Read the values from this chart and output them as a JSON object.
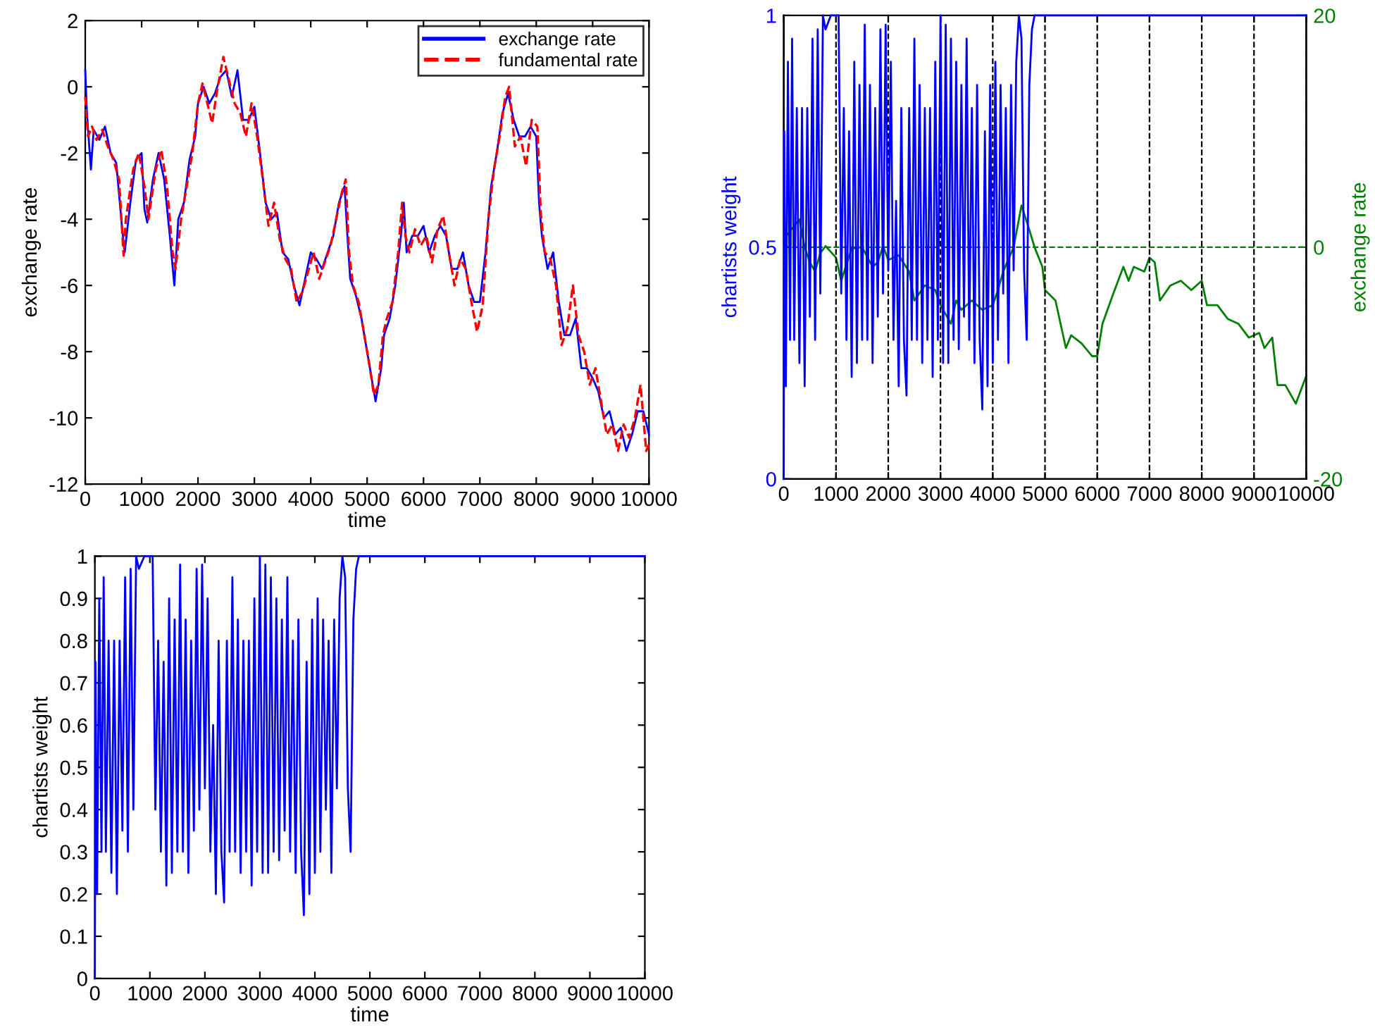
{
  "chart_data": [
    {
      "type": "line",
      "xlabel": "time",
      "ylabel": "exchange rate",
      "xlim": [
        0,
        10000
      ],
      "ylim": [
        -12,
        2
      ],
      "xticks": [
        0,
        1000,
        2000,
        3000,
        4000,
        5000,
        6000,
        7000,
        8000,
        9000,
        10000
      ],
      "yticks": [
        -12,
        -10,
        -8,
        -6,
        -4,
        -2,
        0,
        2
      ],
      "grid": false,
      "legend": "top right",
      "series": [
        {
          "name": "exchange rate",
          "color": "#0000ff",
          "line_style": "solid",
          "x": [
            0,
            30,
            100,
            150,
            250,
            350,
            450,
            550,
            650,
            700,
            800,
            900,
            1000,
            1050,
            1100,
            1200,
            1300,
            1400,
            1500,
            1580,
            1650,
            1750,
            1850,
            1950,
            2000,
            2100,
            2200,
            2300,
            2400,
            2500,
            2600,
            2700,
            2800,
            2900,
            3000,
            3100,
            3200,
            3300,
            3400,
            3500,
            3600,
            3700,
            3800,
            3900,
            4000,
            4100,
            4200,
            4300,
            4400,
            4500,
            4600,
            4650,
            4700,
            4800,
            4900,
            5000,
            5100,
            5150,
            5250,
            5300,
            5400,
            5500,
            5600,
            5650,
            5700,
            5800,
            5900,
            6000,
            6100,
            6200,
            6300,
            6400,
            6500,
            6600,
            6700,
            6800,
            6900,
            7000,
            7100,
            7200,
            7300,
            7400,
            7500,
            7600,
            7700,
            7800,
            7900,
            8000,
            8050,
            8100,
            8200,
            8300,
            8400,
            8500,
            8600,
            8700,
            8800,
            8900,
            9000,
            9100,
            9200,
            9300,
            9400,
            9500,
            9600,
            9700,
            9800,
            9900,
            10000
          ],
          "values": [
            0.5,
            -0.8,
            -2.5,
            -1.3,
            -1.6,
            -1.2,
            -2.0,
            -2.3,
            -4.2,
            -5.0,
            -3.5,
            -2.2,
            -2.0,
            -3.7,
            -4.1,
            -2.8,
            -2.0,
            -2.8,
            -4.5,
            -6.0,
            -4.0,
            -3.5,
            -2.2,
            -1.5,
            -0.5,
            0.0,
            -0.5,
            -0.2,
            0.3,
            0.5,
            -0.3,
            0.5,
            -1.0,
            -1.0,
            -0.6,
            -2.0,
            -3.5,
            -4.0,
            -3.8,
            -5.0,
            -5.2,
            -6.0,
            -6.6,
            -5.8,
            -5.0,
            -5.2,
            -5.5,
            -5.0,
            -4.5,
            -3.5,
            -3.0,
            -4.5,
            -5.8,
            -6.3,
            -7.0,
            -8.0,
            -9.0,
            -9.5,
            -8.5,
            -7.5,
            -7.0,
            -6.0,
            -4.5,
            -3.5,
            -5.0,
            -4.5,
            -4.5,
            -4.2,
            -5.0,
            -4.5,
            -4.2,
            -4.5,
            -5.5,
            -5.5,
            -5.0,
            -6.0,
            -6.5,
            -6.5,
            -5.0,
            -3.0,
            -2.0,
            -0.8,
            -0.2,
            -1.0,
            -1.5,
            -1.5,
            -1.2,
            -1.5,
            -3.5,
            -4.5,
            -5.5,
            -5.0,
            -6.5,
            -7.5,
            -7.5,
            -7.0,
            -8.5,
            -8.5,
            -8.8,
            -9.2,
            -10.0,
            -9.8,
            -10.5,
            -10.3,
            -11.0,
            -10.5,
            -9.8,
            -9.8,
            -10.5
          ]
        },
        {
          "name": "fundamental rate",
          "color": "#ff0000",
          "line_style": "dashed",
          "x": [
            0,
            50,
            120,
            200,
            300,
            400,
            500,
            600,
            680,
            720,
            850,
            950,
            1050,
            1120,
            1250,
            1350,
            1450,
            1550,
            1600,
            1700,
            1800,
            1900,
            2000,
            2080,
            2180,
            2250,
            2350,
            2450,
            2550,
            2650,
            2750,
            2850,
            2950,
            3050,
            3150,
            3250,
            3350,
            3450,
            3550,
            3650,
            3750,
            3850,
            3950,
            4050,
            4150,
            4250,
            4350,
            4450,
            4550,
            4620,
            4680,
            4750,
            4850,
            4950,
            5050,
            5120,
            5200,
            5280,
            5350,
            5450,
            5550,
            5620,
            5680,
            5750,
            5850,
            5950,
            6050,
            6150,
            6250,
            6350,
            6450,
            6550,
            6650,
            6750,
            6850,
            6950,
            7050,
            7150,
            7250,
            7350,
            7450,
            7520,
            7620,
            7720,
            7820,
            7920,
            8020,
            8080,
            8150,
            8250,
            8350,
            8450,
            8550,
            8650,
            8750,
            8850,
            8950,
            9050,
            9150,
            9250,
            9350,
            9450,
            9550,
            9650,
            9750,
            9850,
            9950,
            10000
          ],
          "values": [
            -0.3,
            -1.5,
            -1.2,
            -1.6,
            -1.3,
            -1.8,
            -2.2,
            -2.8,
            -5.1,
            -4.0,
            -2.5,
            -2.0,
            -3.0,
            -4.0,
            -2.5,
            -1.9,
            -3.0,
            -5.0,
            -5.5,
            -4.0,
            -3.0,
            -2.0,
            -0.5,
            0.1,
            -0.6,
            -1.1,
            0.0,
            0.9,
            0.2,
            -0.5,
            -0.8,
            -1.5,
            -0.5,
            -1.5,
            -2.8,
            -4.2,
            -3.5,
            -4.6,
            -5.2,
            -5.5,
            -6.5,
            -6.2,
            -5.6,
            -5.0,
            -5.8,
            -5.3,
            -4.8,
            -4.0,
            -3.2,
            -2.8,
            -5.0,
            -6.0,
            -6.5,
            -7.5,
            -8.5,
            -9.3,
            -9.0,
            -7.5,
            -7.0,
            -6.5,
            -5.0,
            -3.5,
            -4.5,
            -5.0,
            -4.3,
            -4.8,
            -4.5,
            -5.3,
            -4.3,
            -3.9,
            -5.0,
            -6.0,
            -5.2,
            -5.5,
            -6.5,
            -7.4,
            -6.6,
            -4.0,
            -2.5,
            -1.5,
            -0.3,
            0.0,
            -1.8,
            -1.5,
            -2.4,
            -1.0,
            -1.2,
            -3.8,
            -5.0,
            -5.2,
            -6.0,
            -7.8,
            -7.3,
            -6.0,
            -7.5,
            -8.0,
            -9.0,
            -8.5,
            -9.5,
            -10.5,
            -10.2,
            -11.0,
            -10.2,
            -10.6,
            -10.0,
            -9.0,
            -11.0,
            -10.8
          ]
        }
      ]
    },
    {
      "type": "line",
      "ylabel": "chartists weight",
      "y2label": "exchange rate",
      "xlim": [
        0,
        10000
      ],
      "ylim": [
        0,
        1
      ],
      "y2lim": [
        -20,
        20
      ],
      "xticks": [
        0,
        1000,
        2000,
        3000,
        4000,
        5000,
        6000,
        7000,
        8000,
        9000,
        10000
      ],
      "yticks": [
        0,
        0.5,
        1
      ],
      "y2ticks": [
        -20,
        0,
        20
      ],
      "grid": "x",
      "ref_lines": [
        {
          "axis": "y2",
          "value": 0,
          "color": "#008000",
          "line_style": "dashed"
        }
      ],
      "series": [
        {
          "color": "#0000ff",
          "line_style": "solid",
          "x": [
            0,
            10,
            40,
            80,
            120,
            160,
            200,
            250,
            300,
            350,
            400,
            450,
            500,
            550,
            600,
            650,
            700,
            750,
            800,
            900,
            1050,
            1100,
            1150,
            1200,
            1250,
            1300,
            1350,
            1400,
            1450,
            1500,
            1550,
            1600,
            1650,
            1700,
            1750,
            1800,
            1850,
            1900,
            1950,
            2000,
            2050,
            2100,
            2150,
            2200,
            2250,
            2300,
            2350,
            2400,
            2450,
            2500,
            2550,
            2600,
            2650,
            2700,
            2750,
            2800,
            2850,
            2900,
            2950,
            3000,
            3050,
            3100,
            3150,
            3200,
            3250,
            3300,
            3350,
            3400,
            3450,
            3500,
            3550,
            3600,
            3650,
            3700,
            3750,
            3800,
            3850,
            3900,
            3950,
            4000,
            4050,
            4100,
            4150,
            4200,
            4250,
            4300,
            4350,
            4400,
            4450,
            4500,
            4550,
            4600,
            4650,
            4700,
            4750,
            4800,
            10000
          ],
          "values": [
            0.0,
            0.75,
            0.2,
            0.9,
            0.3,
            0.95,
            0.3,
            0.8,
            0.25,
            0.8,
            0.2,
            0.8,
            0.35,
            0.95,
            0.3,
            0.97,
            0.4,
            1.0,
            0.97,
            1.0,
            1.0,
            0.4,
            0.8,
            0.3,
            0.75,
            0.22,
            0.9,
            0.25,
            0.85,
            0.3,
            0.98,
            0.3,
            0.85,
            0.25,
            0.8,
            0.35,
            0.97,
            0.4,
            0.98,
            0.45,
            0.9,
            0.3,
            0.6,
            0.2,
            0.8,
            0.3,
            0.18,
            0.8,
            0.3,
            0.95,
            0.3,
            0.85,
            0.25,
            0.8,
            0.3,
            0.8,
            0.22,
            0.9,
            0.3,
            1.0,
            0.25,
            0.98,
            0.25,
            0.95,
            0.3,
            0.9,
            0.28,
            0.85,
            0.35,
            0.95,
            0.3,
            0.8,
            0.25,
            0.85,
            0.3,
            0.15,
            0.75,
            0.2,
            0.85,
            0.25,
            0.9,
            0.3,
            0.85,
            0.4,
            0.8,
            0.25,
            0.85,
            0.45,
            0.9,
            1.0,
            0.95,
            0.45,
            0.3,
            0.85,
            0.97,
            1.0,
            1.0
          ]
        },
        {
          "color": "#008000",
          "axis": "y2",
          "line_style": "solid",
          "x": [
            0,
            300,
            400,
            500,
            600,
            700,
            800,
            1000,
            1100,
            1300,
            1500,
            1700,
            1800,
            1900,
            2000,
            2200,
            2400,
            2500,
            2700,
            2900,
            3000,
            3200,
            3300,
            3400,
            3600,
            3800,
            4000,
            4100,
            4200,
            4400,
            4550,
            4700,
            4800,
            4950,
            5000,
            5200,
            5400,
            5500,
            5700,
            5900,
            6000,
            6100,
            6300,
            6500,
            6600,
            6700,
            6900,
            7000,
            7100,
            7200,
            7400,
            7600,
            7800,
            8000,
            8100,
            8300,
            8500,
            8700,
            8900,
            9100,
            9200,
            9350,
            9450,
            9600,
            9800,
            10000
          ],
          "values": [
            0.7,
            2.4,
            0,
            -1.3,
            -2.1,
            -0.5,
            0.1,
            -0.9,
            -2.9,
            -0.1,
            0,
            -1.7,
            -1.3,
            0.1,
            -1.1,
            -0.7,
            -2.1,
            -4.6,
            -3.3,
            -3.7,
            -5.0,
            -6.6,
            -4.6,
            -5.4,
            -4.6,
            -5.4,
            -5.0,
            -3.7,
            -2.1,
            0,
            3.6,
            1.5,
            0,
            -1.7,
            -3.7,
            -4.6,
            -8.7,
            -7.6,
            -8.3,
            -9.4,
            -9.4,
            -6.6,
            -4.1,
            -1.7,
            -2.9,
            -1.7,
            -2.1,
            -0.9,
            -1.3,
            -4.6,
            -3.3,
            -2.9,
            -3.7,
            -2.9,
            -5.0,
            -5.0,
            -6.2,
            -6.6,
            -7.8,
            -7.4,
            -8.7,
            -7.8,
            -11.9,
            -11.9,
            -13.5,
            -11.1
          ]
        }
      ]
    },
    {
      "type": "line",
      "xlabel": "time",
      "ylabel": "chartists weight",
      "xlim": [
        0,
        10000
      ],
      "ylim": [
        0,
        1
      ],
      "xticks": [
        0,
        1000,
        2000,
        3000,
        4000,
        5000,
        6000,
        7000,
        8000,
        9000,
        10000
      ],
      "yticks": [
        0,
        0.1,
        0.2,
        0.3,
        0.4,
        0.5,
        0.6,
        0.7,
        0.8,
        0.9,
        1
      ],
      "grid": false,
      "series": [
        {
          "color": "#0000ff",
          "line_style": "solid",
          "x": [
            0,
            10,
            40,
            80,
            120,
            160,
            200,
            250,
            300,
            350,
            400,
            450,
            500,
            550,
            600,
            650,
            700,
            750,
            800,
            900,
            1050,
            1100,
            1150,
            1200,
            1250,
            1300,
            1350,
            1400,
            1450,
            1500,
            1550,
            1600,
            1650,
            1700,
            1750,
            1800,
            1850,
            1900,
            1950,
            2000,
            2050,
            2100,
            2150,
            2200,
            2250,
            2300,
            2350,
            2400,
            2450,
            2500,
            2550,
            2600,
            2650,
            2700,
            2750,
            2800,
            2850,
            2900,
            2950,
            3000,
            3050,
            3100,
            3150,
            3200,
            3250,
            3300,
            3350,
            3400,
            3450,
            3500,
            3550,
            3600,
            3650,
            3700,
            3750,
            3800,
            3850,
            3900,
            3950,
            4000,
            4050,
            4100,
            4150,
            4200,
            4250,
            4300,
            4350,
            4400,
            4450,
            4500,
            4550,
            4600,
            4650,
            4700,
            4750,
            4800,
            10000
          ],
          "values": [
            0.0,
            0.75,
            0.2,
            0.9,
            0.3,
            0.95,
            0.3,
            0.8,
            0.25,
            0.8,
            0.2,
            0.8,
            0.35,
            0.95,
            0.3,
            0.97,
            0.4,
            1.0,
            0.97,
            1.0,
            1.0,
            0.4,
            0.8,
            0.3,
            0.75,
            0.22,
            0.9,
            0.25,
            0.85,
            0.3,
            0.98,
            0.3,
            0.85,
            0.25,
            0.8,
            0.35,
            0.97,
            0.4,
            0.98,
            0.45,
            0.9,
            0.3,
            0.6,
            0.2,
            0.8,
            0.3,
            0.18,
            0.8,
            0.3,
            0.95,
            0.3,
            0.85,
            0.25,
            0.8,
            0.3,
            0.8,
            0.22,
            0.9,
            0.3,
            1.0,
            0.25,
            0.98,
            0.25,
            0.95,
            0.3,
            0.9,
            0.28,
            0.85,
            0.35,
            0.95,
            0.3,
            0.8,
            0.25,
            0.85,
            0.3,
            0.15,
            0.75,
            0.2,
            0.85,
            0.25,
            0.9,
            0.3,
            0.85,
            0.4,
            0.8,
            0.25,
            0.85,
            0.45,
            0.9,
            1.0,
            0.95,
            0.45,
            0.3,
            0.85,
            0.97,
            1.0,
            1.0
          ]
        }
      ]
    }
  ]
}
